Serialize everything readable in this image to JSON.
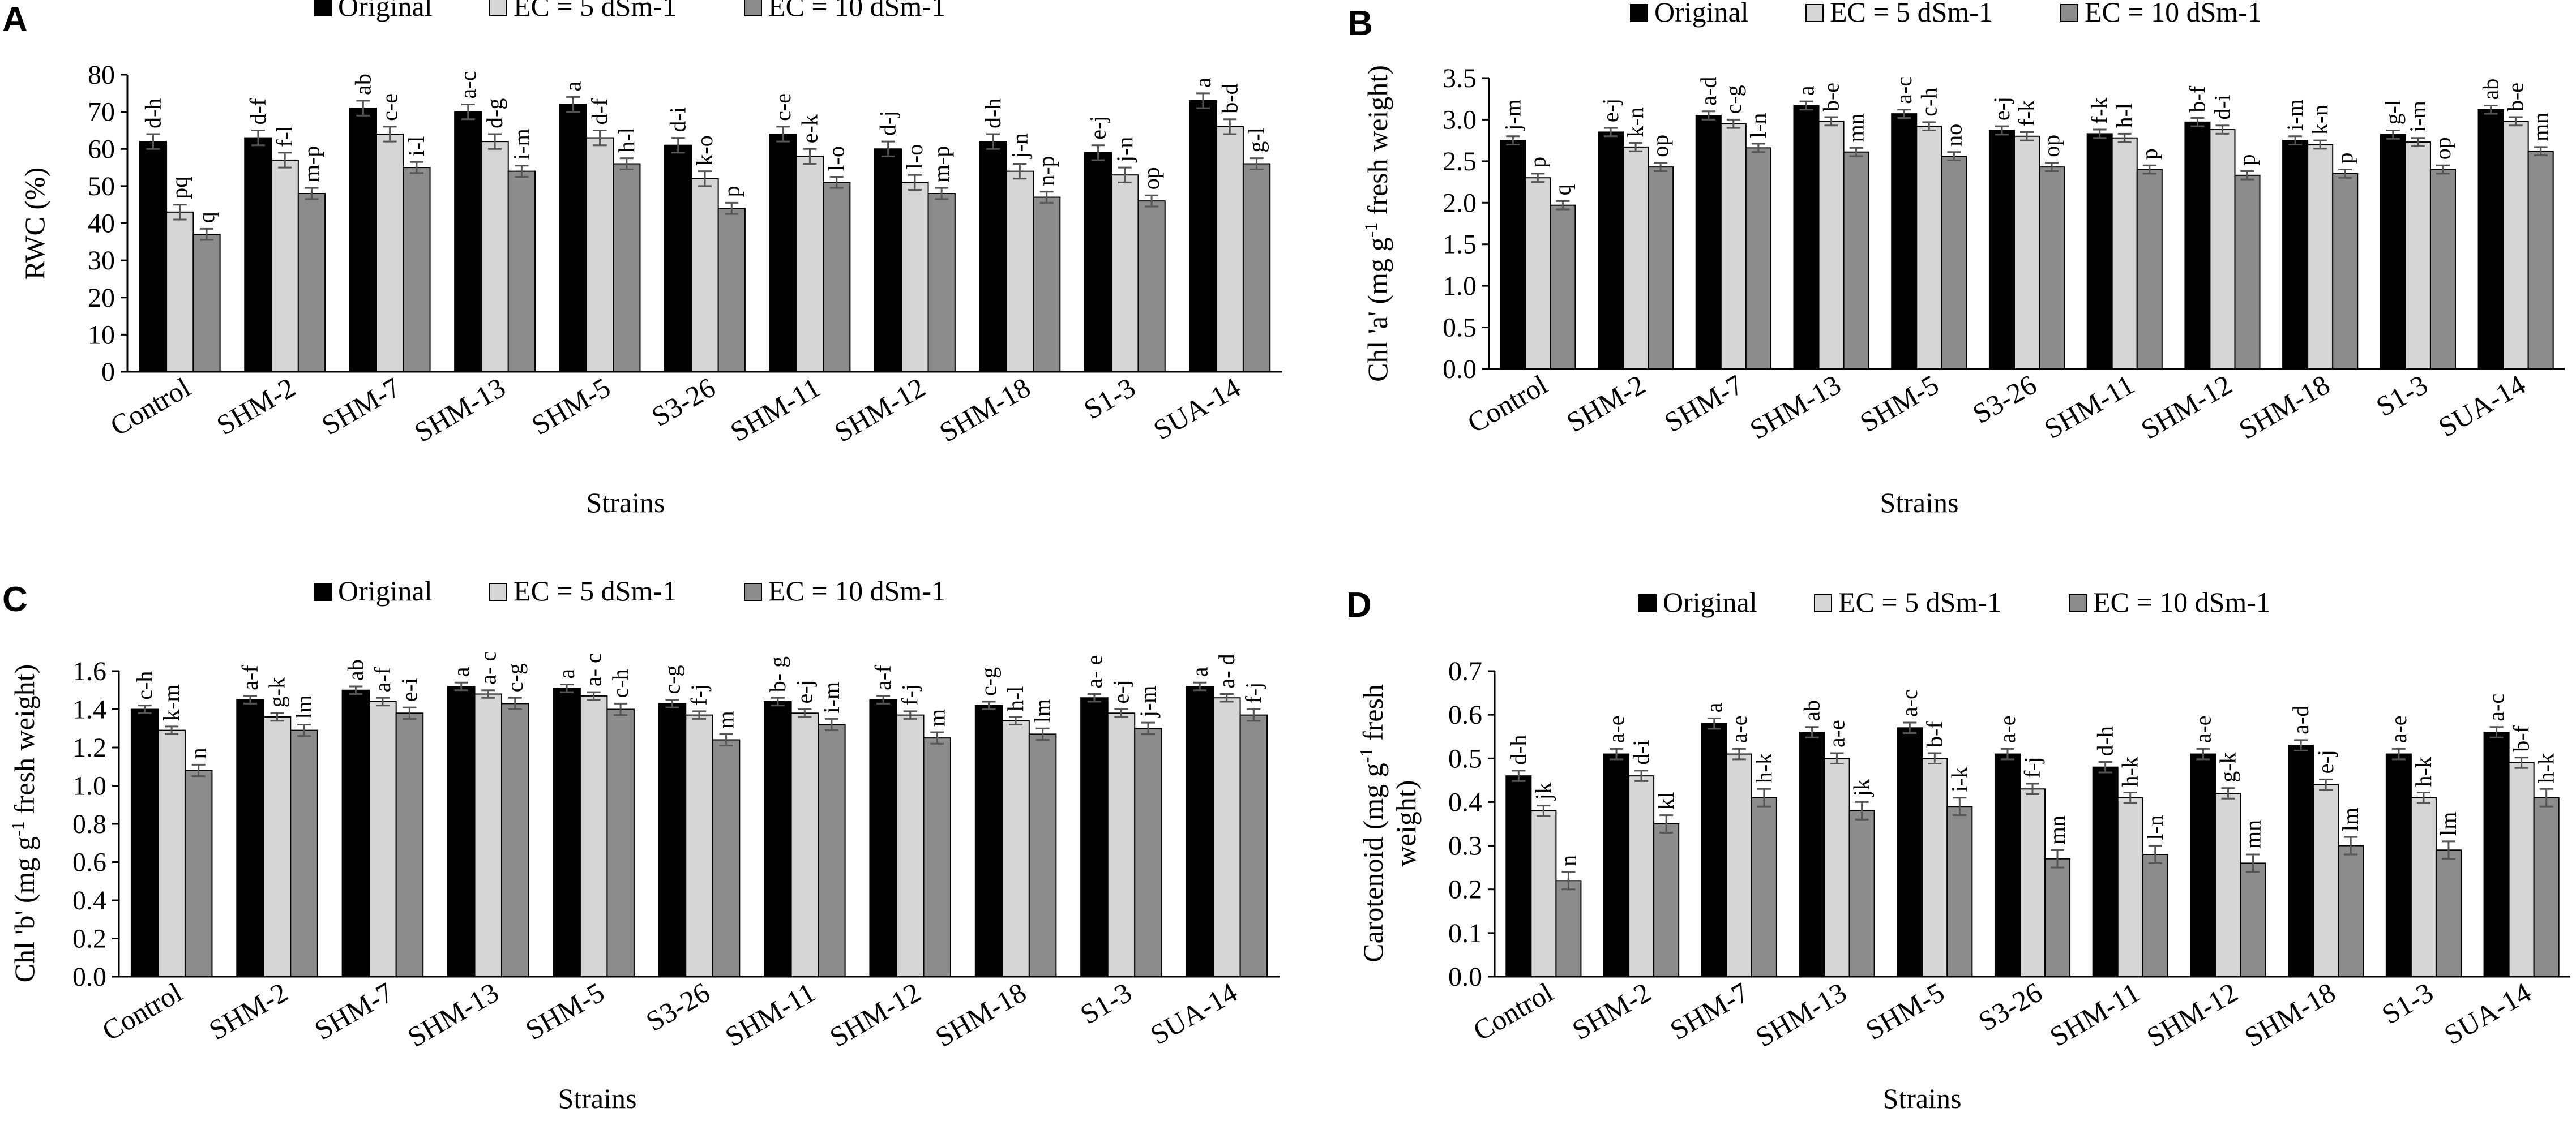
{
  "chart_data": [
    {
      "panel": "A",
      "type": "bar",
      "title": "",
      "xlabel": "Strains",
      "ylabel": "RWC (%)",
      "ylim": [
        0,
        80
      ],
      "yticks": [
        0,
        10,
        20,
        30,
        40,
        50,
        60,
        70,
        80
      ],
      "ytick_labels": [
        "0",
        "10",
        "20",
        "30",
        "40",
        "50",
        "60",
        "70",
        "80"
      ],
      "grid": false,
      "legend_position": "top",
      "categories": [
        "Control",
        "SHM-2",
        "SHM-7",
        "SHM-13",
        "SHM-5",
        "S3-26",
        "SHM-11",
        "SHM-12",
        "SHM-18",
        "S1-3",
        "SUA-14"
      ],
      "series": [
        {
          "name": "Original",
          "values": [
            62,
            63,
            71,
            70,
            72,
            61,
            64,
            60,
            62,
            59,
            73
          ],
          "errors": [
            2,
            2,
            2,
            2,
            2,
            2,
            2,
            2,
            2,
            2,
            2
          ],
          "letters": [
            "d-h",
            "d-f",
            "ab",
            "a-c",
            "a",
            "d-i",
            "c-e",
            "d-j",
            "d-h",
            "e-j",
            "a"
          ]
        },
        {
          "name": "EC = 5 dSm-1",
          "values": [
            43,
            57,
            64,
            62,
            63,
            52,
            58,
            51,
            54,
            53,
            66
          ],
          "errors": [
            2,
            2,
            2,
            2,
            2,
            2,
            2,
            2,
            2,
            2,
            2
          ],
          "letters": [
            "pq",
            "f-l",
            "c-e",
            "d-g",
            "d-f",
            "k-o",
            "e-k",
            "l-o",
            "j-n",
            "j-n",
            "b-d"
          ]
        },
        {
          "name": "EC = 10 dSm-1",
          "values": [
            37,
            48,
            55,
            54,
            56,
            44,
            51,
            48,
            47,
            46,
            56
          ],
          "errors": [
            1.5,
            1.5,
            1.5,
            1.5,
            1.5,
            1.5,
            1.5,
            1.5,
            1.5,
            1.5,
            1.5
          ],
          "letters": [
            "q",
            "m-p",
            "i-l",
            "i-m",
            "h-l",
            "p",
            "l-o",
            "m-p",
            "n-p",
            "op",
            "g-l"
          ]
        }
      ]
    },
    {
      "panel": "B",
      "type": "bar",
      "title": "",
      "xlabel": "Strains",
      "ylabel": "Chl 'a' (mg g-1 fresh weight)",
      "ylabel_parts": [
        "Chl 'a' (mg g",
        "-1",
        " fresh weight)"
      ],
      "ylim": [
        0,
        3.5
      ],
      "yticks": [
        0,
        0.5,
        1.0,
        1.5,
        2.0,
        2.5,
        3.0,
        3.5
      ],
      "ytick_labels": [
        "0.0",
        "0.5",
        "1.0",
        "1.5",
        "2.0",
        "2.5",
        "3.0",
        "3.5"
      ],
      "grid": false,
      "legend_position": "top",
      "categories": [
        "Control",
        "SHM-2",
        "SHM-7",
        "SHM-13",
        "SHM-5",
        "S3-26",
        "SHM-11",
        "SHM-12",
        "SHM-18",
        "S1-3",
        "SUA-14"
      ],
      "series": [
        {
          "name": "Original",
          "values": [
            2.75,
            2.85,
            3.05,
            3.17,
            3.07,
            2.87,
            2.83,
            2.97,
            2.75,
            2.82,
            3.12
          ],
          "errors": [
            0.05,
            0.05,
            0.05,
            0.05,
            0.05,
            0.05,
            0.05,
            0.05,
            0.05,
            0.05,
            0.05
          ],
          "letters": [
            "j-m",
            "e-j",
            "a-d",
            "a",
            "a-c",
            "e-j",
            "f-k",
            "b-f",
            "i-m",
            "g-l",
            "ab"
          ]
        },
        {
          "name": "EC = 5 dSm-1",
          "values": [
            2.3,
            2.67,
            2.95,
            2.98,
            2.92,
            2.8,
            2.78,
            2.88,
            2.7,
            2.73,
            2.98
          ],
          "errors": [
            0.05,
            0.05,
            0.05,
            0.05,
            0.05,
            0.05,
            0.05,
            0.05,
            0.05,
            0.05,
            0.05
          ],
          "letters": [
            "p",
            "k-n",
            "c-g",
            "b-e",
            "c-h",
            "f-k",
            "h-l",
            "d-i",
            "k-n",
            "i-m",
            "b-e"
          ]
        },
        {
          "name": "EC = 10 dSm-1",
          "values": [
            1.97,
            2.43,
            2.66,
            2.61,
            2.56,
            2.43,
            2.4,
            2.33,
            2.35,
            2.4,
            2.62
          ],
          "errors": [
            0.05,
            0.05,
            0.05,
            0.05,
            0.05,
            0.05,
            0.05,
            0.05,
            0.05,
            0.05,
            0.05
          ],
          "letters": [
            "q",
            "op",
            "l-n",
            "mn",
            "no",
            "op",
            "p",
            "p",
            "p",
            "op",
            "mn"
          ]
        }
      ]
    },
    {
      "panel": "C",
      "type": "bar",
      "title": "",
      "xlabel": "Strains",
      "ylabel": "Chl 'b' (mg g-1 fresh weight)",
      "ylabel_parts": [
        "Chl 'b' (mg g",
        "-1",
        " fresh weight)"
      ],
      "ylim": [
        0,
        1.6
      ],
      "yticks": [
        0,
        0.2,
        0.4,
        0.6,
        0.8,
        1.0,
        1.2,
        1.4,
        1.6
      ],
      "ytick_labels": [
        "0.0",
        "0.2",
        "0.4",
        "0.6",
        "0.8",
        "1.0",
        "1.2",
        "1.4",
        "1.6"
      ],
      "grid": false,
      "legend_position": "top",
      "categories": [
        "Control",
        "SHM-2",
        "SHM-7",
        "SHM-13",
        "SHM-5",
        "S3-26",
        "SHM-11",
        "SHM-12",
        "SHM-18",
        "S1-3",
        "SUA-14"
      ],
      "series": [
        {
          "name": "Original",
          "values": [
            1.4,
            1.45,
            1.5,
            1.52,
            1.51,
            1.43,
            1.44,
            1.45,
            1.42,
            1.46,
            1.52
          ],
          "errors": [
            0.02,
            0.02,
            0.02,
            0.02,
            0.02,
            0.02,
            0.02,
            0.02,
            0.02,
            0.02,
            0.02
          ],
          "letters": [
            "c-h",
            "a-f",
            "ab",
            "a",
            "a",
            "c-g",
            "b- g",
            "a-f",
            "c-g",
            "a- e",
            "a"
          ]
        },
        {
          "name": "EC = 5 dSm-1",
          "values": [
            1.29,
            1.36,
            1.44,
            1.48,
            1.47,
            1.37,
            1.38,
            1.37,
            1.34,
            1.38,
            1.46
          ],
          "errors": [
            0.02,
            0.02,
            0.02,
            0.02,
            0.02,
            0.02,
            0.02,
            0.02,
            0.02,
            0.02,
            0.02
          ],
          "letters": [
            "k-m",
            "g-k",
            "a-f",
            "a- c",
            "a- c",
            "f-j",
            "e-j",
            "f-j",
            "h-l",
            "e-j",
            "a- d"
          ]
        },
        {
          "name": "EC = 10 dSm-1",
          "values": [
            1.08,
            1.29,
            1.38,
            1.43,
            1.4,
            1.24,
            1.32,
            1.25,
            1.27,
            1.3,
            1.37
          ],
          "errors": [
            0.03,
            0.03,
            0.03,
            0.03,
            0.03,
            0.03,
            0.03,
            0.03,
            0.03,
            0.03,
            0.03
          ],
          "letters": [
            "n",
            "lm",
            "e-i",
            "c-g",
            "c-h",
            "m",
            "i-m",
            "m",
            "lm",
            "j-m",
            "f-j"
          ]
        }
      ]
    },
    {
      "panel": "D",
      "type": "bar",
      "title": "",
      "xlabel": "Strains",
      "ylabel": "Carotenoid (mg g-1 fresh weight)",
      "ylabel_line1_parts": [
        "Carotenoid (mg g",
        "-1",
        "  fresh"
      ],
      "ylabel_line2": "weight)",
      "ylim": [
        0,
        0.7
      ],
      "yticks": [
        0,
        0.1,
        0.2,
        0.3,
        0.4,
        0.5,
        0.6,
        0.7
      ],
      "ytick_labels": [
        "0.0",
        "0.1",
        "0.2",
        "0.3",
        "0.4",
        "0.5",
        "0.6",
        "0.7"
      ],
      "grid": false,
      "legend_position": "top",
      "categories": [
        "Control",
        "SHM-2",
        "SHM-7",
        "SHM-13",
        "SHM-5",
        "S3-26",
        "SHM-11",
        "SHM-12",
        "SHM-18",
        "S1-3",
        "SUA-14"
      ],
      "series": [
        {
          "name": "Original",
          "values": [
            0.46,
            0.51,
            0.58,
            0.56,
            0.57,
            0.51,
            0.48,
            0.51,
            0.53,
            0.51,
            0.56
          ],
          "errors": [
            0.012,
            0.012,
            0.012,
            0.012,
            0.012,
            0.012,
            0.012,
            0.012,
            0.012,
            0.012,
            0.012
          ],
          "letters": [
            "d-h",
            "a-e",
            "a",
            "ab",
            "a-c",
            "a-e",
            "d-h",
            "a-e",
            "a-d",
            "a-e",
            "a-c"
          ]
        },
        {
          "name": "EC = 5 dSm-1",
          "values": [
            0.38,
            0.46,
            0.51,
            0.5,
            0.5,
            0.43,
            0.41,
            0.42,
            0.44,
            0.41,
            0.49
          ],
          "errors": [
            0.012,
            0.012,
            0.012,
            0.012,
            0.012,
            0.012,
            0.012,
            0.012,
            0.012,
            0.012,
            0.012
          ],
          "letters": [
            "jk",
            "d-i",
            "a-e",
            "a-e",
            "b-f",
            "f-j",
            "h-k",
            "g-k",
            "e-j",
            "h-k",
            "b-f"
          ]
        },
        {
          "name": "EC = 10 dSm-1",
          "values": [
            0.22,
            0.35,
            0.41,
            0.38,
            0.39,
            0.27,
            0.28,
            0.26,
            0.3,
            0.29,
            0.41
          ],
          "errors": [
            0.02,
            0.02,
            0.02,
            0.02,
            0.02,
            0.02,
            0.02,
            0.02,
            0.02,
            0.02,
            0.02
          ],
          "letters": [
            "n",
            "kl",
            "h-k",
            "jk",
            "i-k",
            "mn",
            "l-n",
            "mn",
            "lm",
            "lm",
            "h-k"
          ]
        }
      ]
    }
  ],
  "colors": {
    "series": [
      "#000000",
      "#d6d6d6",
      "#8c8c8c"
    ],
    "axis": "#000000"
  }
}
